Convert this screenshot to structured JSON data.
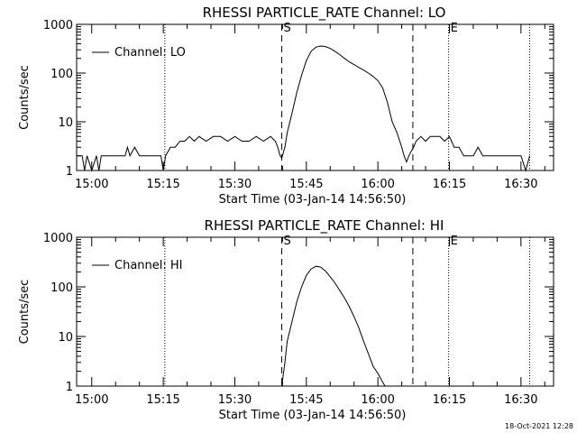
{
  "footer": {
    "stamp": "18-Oct-2021 12:28"
  },
  "chart_data": [
    {
      "type": "line",
      "title": "RHESSI PARTICLE_RATE Channel: LO",
      "xlabel": "Start Time (03-Jan-14 14:56:50)",
      "ylabel": "Counts/sec",
      "yscale": "log",
      "ylim": [
        1,
        1000
      ],
      "xlim": [
        "14:56:50",
        "16:36:50"
      ],
      "xticks": [
        "15:00",
        "15:15",
        "15:30",
        "15:45",
        "16:00",
        "16:15",
        "16:30"
      ],
      "yticks": [
        "1",
        "10",
        "100",
        "1000"
      ],
      "legend": {
        "label": "Channel: LO",
        "placement": "top-left"
      },
      "markers": [
        {
          "label": "",
          "time": "15:15:20",
          "style": "dotted"
        },
        {
          "label": "S",
          "time": "15:39:50",
          "style": "dashed"
        },
        {
          "label": "",
          "time": "16:07:20",
          "style": "dashed"
        },
        {
          "label": "E",
          "time": "16:14:50",
          "style": "dotted"
        },
        {
          "label": "",
          "time": "16:31:50",
          "style": "dotted"
        }
      ],
      "series": [
        {
          "name": "Channel: LO",
          "t": [
            "14:56:50",
            "14:58:00",
            "14:58:30",
            "14:59:00",
            "15:00:00",
            "15:01:00",
            "15:01:30",
            "15:02:00",
            "15:02:30",
            "15:03:00",
            "15:04:00",
            "15:05:00",
            "15:06:00",
            "15:07:00",
            "15:07:30",
            "15:08:00",
            "15:09:00",
            "15:10:00",
            "15:11:00",
            "15:12:00",
            "15:13:00",
            "15:14:00",
            "15:14:30",
            "15:15:00",
            "15:15:30",
            "15:16:30",
            "15:17:30",
            "15:18:30",
            "15:19:30",
            "15:20:30",
            "15:21:30",
            "15:22:30",
            "15:24:00",
            "15:25:30",
            "15:27:00",
            "15:28:30",
            "15:30:00",
            "15:31:30",
            "15:33:00",
            "15:34:30",
            "15:36:00",
            "15:37:30",
            "15:38:30",
            "15:39:00",
            "15:39:30",
            "15:39:50",
            "15:40:30",
            "15:41:00",
            "15:42:00",
            "15:43:00",
            "15:44:00",
            "15:45:00",
            "15:46:00",
            "15:47:00",
            "15:48:00",
            "15:49:00",
            "15:50:00",
            "15:51:00",
            "15:52:00",
            "15:53:00",
            "15:54:00",
            "15:55:00",
            "15:56:00",
            "15:57:00",
            "15:58:00",
            "15:59:00",
            "16:00:00",
            "16:01:00",
            "16:02:00",
            "16:03:00",
            "16:04:00",
            "16:05:00",
            "16:05:30",
            "16:06:00",
            "16:06:30",
            "16:07:00",
            "16:07:30",
            "16:08:00",
            "16:09:00",
            "16:10:00",
            "16:11:00",
            "16:12:00",
            "16:13:00",
            "16:14:00",
            "16:15:00",
            "16:16:00",
            "16:17:00",
            "16:18:00",
            "16:19:00",
            "16:20:00",
            "16:21:00",
            "16:22:00",
            "16:23:00",
            "16:24:00",
            "16:25:00",
            "16:26:00",
            "16:27:00",
            "16:28:00",
            "16:29:00",
            "16:30:00",
            "16:31:00",
            "16:31:50"
          ],
          "y": [
            2,
            2,
            1,
            2,
            1,
            2,
            1,
            2,
            2,
            2,
            2,
            2,
            2,
            2,
            3,
            2,
            3,
            2,
            2,
            2,
            2,
            2,
            2,
            1,
            2,
            3,
            3,
            4,
            4,
            5,
            4,
            5,
            4,
            5,
            5,
            4,
            5,
            4,
            4,
            5,
            4,
            5,
            4,
            3,
            2,
            1.8,
            3,
            6,
            15,
            40,
            90,
            180,
            280,
            340,
            360,
            350,
            320,
            280,
            240,
            200,
            170,
            150,
            130,
            115,
            100,
            85,
            70,
            50,
            25,
            10,
            6,
            3,
            2,
            1.5,
            2,
            2.5,
            3,
            4,
            5,
            4,
            5,
            5,
            5,
            4,
            5,
            3,
            3,
            2,
            2,
            2,
            3,
            2,
            2,
            2,
            2,
            2,
            2,
            2,
            2,
            2,
            1,
            2
          ]
        }
      ]
    },
    {
      "type": "line",
      "title": "RHESSI PARTICLE_RATE Channel: HI",
      "xlabel": "Start Time (03-Jan-14 14:56:50)",
      "ylabel": "Counts/sec",
      "yscale": "log",
      "ylim": [
        1,
        1000
      ],
      "xlim": [
        "14:56:50",
        "16:36:50"
      ],
      "xticks": [
        "15:00",
        "15:15",
        "15:30",
        "15:45",
        "16:00",
        "16:15",
        "16:30"
      ],
      "yticks": [
        "1",
        "10",
        "100",
        "1000"
      ],
      "legend": {
        "label": "Channel: HI",
        "placement": "top-left"
      },
      "markers": [
        {
          "label": "",
          "time": "15:15:20",
          "style": "dotted"
        },
        {
          "label": "S",
          "time": "15:39:50",
          "style": "dashed"
        },
        {
          "label": "",
          "time": "16:07:20",
          "style": "dashed"
        },
        {
          "label": "E",
          "time": "16:14:50",
          "style": "dotted"
        },
        {
          "label": "",
          "time": "16:31:50",
          "style": "dotted"
        }
      ],
      "series": [
        {
          "name": "Channel: HI",
          "t": [
            "15:39:50",
            "15:40:30",
            "15:41:00",
            "15:42:00",
            "15:43:00",
            "15:44:00",
            "15:45:00",
            "15:46:00",
            "15:47:00",
            "15:48:00",
            "15:49:00",
            "15:50:00",
            "15:51:00",
            "15:52:00",
            "15:53:00",
            "15:54:00",
            "15:55:00",
            "15:56:00",
            "15:57:00",
            "15:58:00",
            "15:59:00",
            "16:00:00",
            "16:01:00",
            "16:01:30"
          ],
          "y": [
            1,
            3,
            8,
            20,
            50,
            100,
            170,
            230,
            260,
            250,
            210,
            160,
            120,
            85,
            60,
            40,
            25,
            15,
            8,
            4.5,
            2.5,
            1.8,
            1.2,
            1
          ]
        }
      ]
    }
  ]
}
